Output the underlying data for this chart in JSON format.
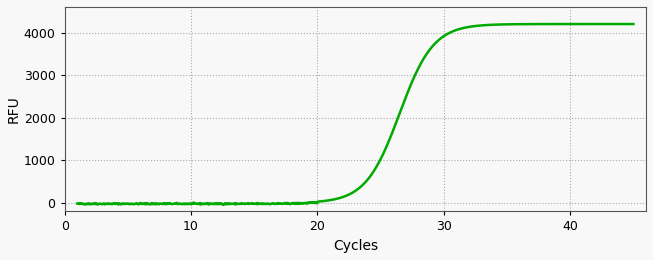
{
  "title": "",
  "xlabel": "Cycles",
  "ylabel": "RFU",
  "xlim": [
    0,
    46
  ],
  "ylim": [
    -200,
    4600
  ],
  "xticks": [
    0,
    10,
    20,
    30,
    40
  ],
  "yticks": [
    0,
    1000,
    2000,
    3000,
    4000
  ],
  "line_color": "#00aa00",
  "line_width": 1.8,
  "grid_color": "#aaaaaa",
  "background_color": "#f8f8f8",
  "sigmoid_L": 4200,
  "sigmoid_k": 0.75,
  "sigmoid_x0": 26.5,
  "noise_baseline": -20,
  "x_start": 1,
  "x_end": 45
}
